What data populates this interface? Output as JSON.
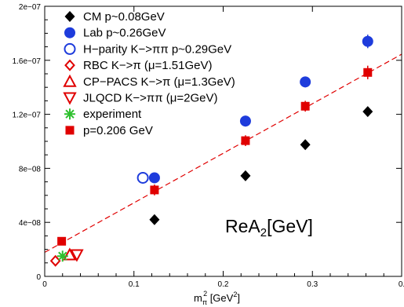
{
  "chart_data": {
    "type": "scatter",
    "title": "",
    "annotation": "ReA",
    "annotation_sub": "2",
    "annotation_tail": "[GeV]",
    "xlabel": {
      "base": "m",
      "sub": "π",
      "sup": "2",
      "tail": " [GeV",
      "tail_sup": "2",
      "close": "]"
    },
    "ylabel": "",
    "xlim": [
      0,
      0.4
    ],
    "ylim": [
      0,
      2e-07
    ],
    "x_ticks": [
      {
        "value": 0,
        "label": "0"
      },
      {
        "value": 0.1,
        "label": "0.1"
      },
      {
        "value": 0.2,
        "label": "0.2"
      },
      {
        "value": 0.3,
        "label": "0.3"
      },
      {
        "value": 0.4,
        "label": "0."
      }
    ],
    "y_ticks": [
      {
        "value": 0,
        "label": "0"
      },
      {
        "value": 4e-08,
        "label": "4e−08"
      },
      {
        "value": 8e-08,
        "label": "8e−08"
      },
      {
        "value": 1.2e-07,
        "label": "1.2e−07"
      },
      {
        "value": 1.6e-07,
        "label": "1.6e−07"
      },
      {
        "value": 2e-07,
        "label": "2e−07"
      }
    ],
    "legend_position": "top-left",
    "series": [
      {
        "name": "CM p~0.08GeV",
        "marker": "filled-diamond",
        "color": "#000000",
        "points": [
          [
            0.123,
            4.2e-08
          ],
          [
            0.225,
            7.45e-08
          ],
          [
            0.292,
            9.75e-08
          ],
          [
            0.362,
            1.22e-07
          ]
        ]
      },
      {
        "name": "Lab p~0.26GeV",
        "marker": "filled-circle",
        "color": "#1e3cdc",
        "points": [
          [
            0.123,
            7.3e-08,
            4e-09
          ],
          [
            0.225,
            1.15e-07,
            4e-09
          ],
          [
            0.292,
            1.44e-07,
            4e-09
          ],
          [
            0.362,
            1.74e-07,
            5e-09
          ]
        ]
      },
      {
        "name": "H−parity K−>ππ p~0.29GeV",
        "marker": "open-circle",
        "color": "#1e3cdc",
        "points": [
          [
            0.11,
            7.3e-08
          ]
        ]
      },
      {
        "name": "RBC K−>π (μ=1.51GeV)",
        "marker": "open-diamond",
        "color": "#e00000",
        "points": [
          [
            0.012,
            1.15e-08
          ]
        ]
      },
      {
        "name": "CP−PACS K−>π (μ=1.3GeV)",
        "marker": "open-triangle-up",
        "color": "#e00000",
        "points": [
          [
            0.028,
            1.6e-08
          ]
        ]
      },
      {
        "name": "JLQCD K−>ππ (μ=2GeV)",
        "marker": "open-triangle-down",
        "color": "#e00000",
        "points": [
          [
            0.036,
            1.6e-08
          ]
        ]
      },
      {
        "name": "experiment",
        "marker": "star",
        "color": "#2ec02e",
        "points": [
          [
            0.02,
            1.5e-08
          ]
        ]
      },
      {
        "name": "p=0.206 GeV",
        "marker": "filled-square",
        "color": "#e00000",
        "points": [
          [
            0.019,
            2.6e-08,
            2e-09
          ],
          [
            0.123,
            6.4e-08,
            4e-09
          ],
          [
            0.225,
            1.005e-07,
            4e-09
          ],
          [
            0.292,
            1.26e-07,
            4e-09
          ],
          [
            0.362,
            1.51e-07,
            5e-09
          ]
        ]
      }
    ],
    "fit_line": {
      "color": "#e00000",
      "style": "dashed",
      "x": [
        0,
        0.4
      ],
      "y": [
        1.78e-08,
        1.645e-07
      ]
    }
  }
}
